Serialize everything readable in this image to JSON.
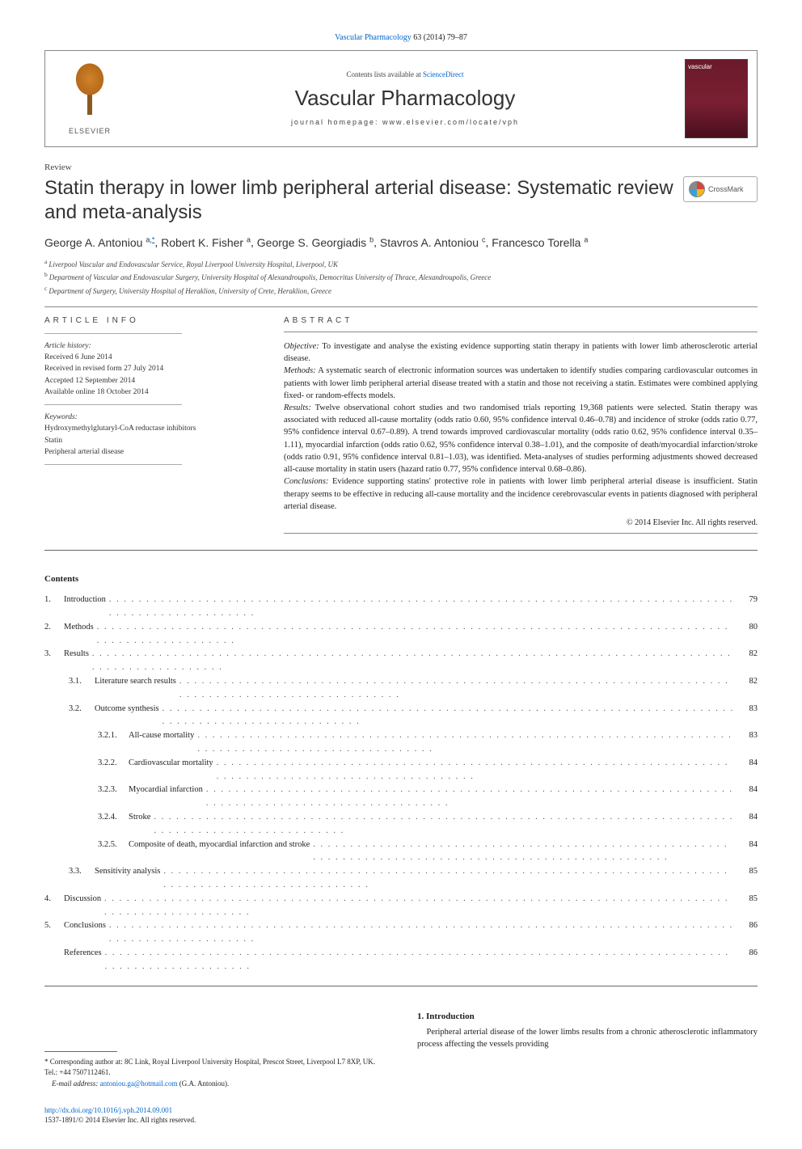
{
  "citation": {
    "journal_link": "Vascular Pharmacology",
    "text_after": " 63 (2014) 79–87"
  },
  "header": {
    "contents_prefix": "Contents lists available at ",
    "contents_link": "ScienceDirect",
    "journal_title": "Vascular Pharmacology",
    "homepage_label": "journal homepage: www.elsevier.com/locate/vph",
    "publisher_label": "ELSEVIER",
    "cover_text": "vascular"
  },
  "article": {
    "type": "Review",
    "title": "Statin therapy in lower limb peripheral arterial disease: Systematic review and meta-analysis",
    "crossmark_label": "CrossMark"
  },
  "authors": [
    {
      "name": "George A. Antoniou",
      "aff": "a,",
      "corr": "*"
    },
    {
      "name": "Robert K. Fisher",
      "aff": "a"
    },
    {
      "name": "George S. Georgiadis",
      "aff": "b"
    },
    {
      "name": "Stavros A. Antoniou",
      "aff": "c"
    },
    {
      "name": "Francesco Torella",
      "aff": "a"
    }
  ],
  "affiliations": {
    "a": "Liverpool Vascular and Endovascular Service, Royal Liverpool University Hospital, Liverpool, UK",
    "b": "Department of Vascular and Endovascular Surgery, University Hospital of Alexandroupolis, Democritus University of Thrace, Alexandroupolis, Greece",
    "c": "Department of Surgery, University Hospital of Heraklion, University of Crete, Heraklion, Greece"
  },
  "info": {
    "heading": "article info",
    "history_label": "Article history:",
    "received": "Received 6 June 2014",
    "revised": "Received in revised form 27 July 2014",
    "accepted": "Accepted 12 September 2014",
    "online": "Available online 18 October 2014",
    "keywords_label": "Keywords:",
    "keywords": [
      "Hydroxymethylglutaryl-CoA reductase inhibitors",
      "Statin",
      "Peripheral arterial disease"
    ]
  },
  "abstract": {
    "heading": "abstract",
    "objective_label": "Objective:",
    "objective": " To investigate and analyse the existing evidence supporting statin therapy in patients with lower limb atherosclerotic arterial disease.",
    "methods_label": "Methods:",
    "methods": " A systematic search of electronic information sources was undertaken to identify studies comparing cardiovascular outcomes in patients with lower limb peripheral arterial disease treated with a statin and those not receiving a statin. Estimates were combined applying fixed- or random-effects models.",
    "results_label": "Results:",
    "results": " Twelve observational cohort studies and two randomised trials reporting 19,368 patients were selected. Statin therapy was associated with reduced all-cause mortality (odds ratio 0.60, 95% confidence interval 0.46–0.78) and incidence of stroke (odds ratio 0.77, 95% confidence interval 0.67–0.89). A trend towards improved cardiovascular mortality (odds ratio 0.62, 95% confidence interval 0.35–1.11), myocardial infarction (odds ratio 0.62, 95% confidence interval 0.38–1.01), and the composite of death/myocardial infarction/stroke (odds ratio 0.91, 95% confidence interval 0.81–1.03), was identified. Meta-analyses of studies performing adjustments showed decreased all-cause mortality in statin users (hazard ratio 0.77, 95% confidence interval 0.68–0.86).",
    "conclusions_label": "Conclusions:",
    "conclusions": " Evidence supporting statins' protective role in patients with lower limb peripheral arterial disease is insufficient. Statin therapy seems to be effective in reducing all-cause mortality and the incidence cerebrovascular events in patients diagnosed with peripheral arterial disease.",
    "copyright": "© 2014 Elsevier Inc. All rights reserved."
  },
  "toc": {
    "heading": "Contents",
    "items": [
      {
        "level": 0,
        "num": "1.",
        "label": "Introduction",
        "page": "79"
      },
      {
        "level": 0,
        "num": "2.",
        "label": "Methods",
        "page": "80"
      },
      {
        "level": 0,
        "num": "3.",
        "label": "Results",
        "page": "82"
      },
      {
        "level": 1,
        "num": "3.1.",
        "label": "Literature search results",
        "page": "82"
      },
      {
        "level": 1,
        "num": "3.2.",
        "label": "Outcome synthesis",
        "page": "83"
      },
      {
        "level": 2,
        "num": "3.2.1.",
        "label": "All-cause mortality",
        "page": "83"
      },
      {
        "level": 2,
        "num": "3.2.2.",
        "label": "Cardiovascular mortality",
        "page": "84"
      },
      {
        "level": 2,
        "num": "3.2.3.",
        "label": "Myocardial infarction",
        "page": "84"
      },
      {
        "level": 2,
        "num": "3.2.4.",
        "label": "Stroke",
        "page": "84"
      },
      {
        "level": 2,
        "num": "3.2.5.",
        "label": "Composite of death, myocardial infarction and stroke",
        "page": "84"
      },
      {
        "level": 1,
        "num": "3.3.",
        "label": "Sensitivity analysis",
        "page": "85"
      },
      {
        "level": 0,
        "num": "4.",
        "label": "Discussion",
        "page": "85"
      },
      {
        "level": 0,
        "num": "5.",
        "label": "Conclusions",
        "page": "86"
      },
      {
        "level": 0,
        "num": "",
        "label": "References",
        "page": "86"
      }
    ]
  },
  "section1": {
    "heading": "1. Introduction",
    "para": "Peripheral arterial disease of the lower limbs results from a chronic atherosclerotic inflammatory process affecting the vessels providing"
  },
  "footnotes": {
    "corr_symbol": "*",
    "corr_text": " Corresponding author at: 8C Link, Royal Liverpool University Hospital, Prescot Street, Liverpool L7 8XP, UK. Tel.: +44 7507112461.",
    "email_label": "E-mail address:",
    "email": "antoniou.ga@hotmail.com",
    "email_after": " (G.A. Antoniou)."
  },
  "doi": {
    "url": "http://dx.doi.org/10.1016/j.vph.2014.09.001",
    "issn_line": "1537-1891/© 2014 Elsevier Inc. All rights reserved."
  },
  "colors": {
    "link": "#0066cc",
    "text": "#222222",
    "rule": "#888888",
    "elsevier_orange": "#d0822a",
    "cover_bg": "#6a1a2a"
  }
}
